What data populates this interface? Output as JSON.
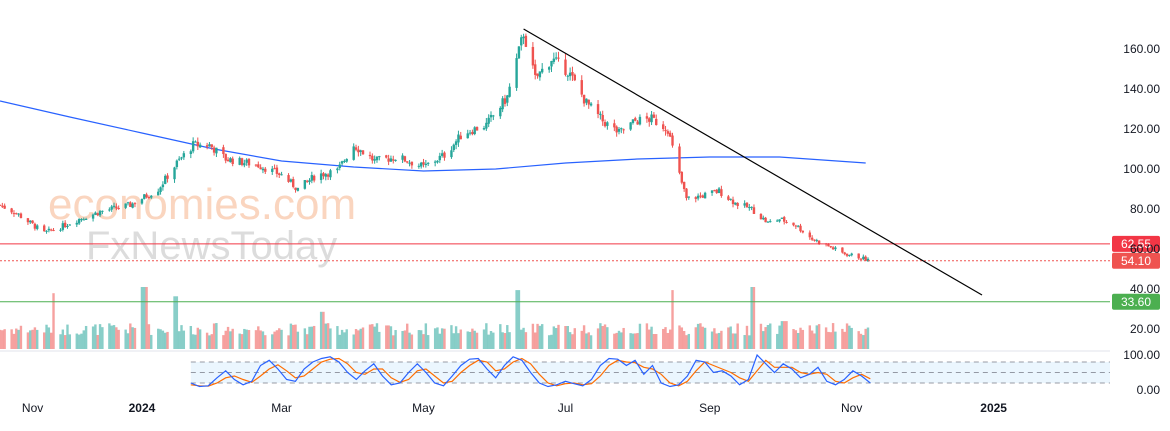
{
  "colors": {
    "up": "#26a69a",
    "down": "#ef5350",
    "ma": "#2962ff",
    "trendline": "#000000",
    "resistance": "#f23645",
    "last_price": "#ef5350",
    "support": "#4caf50",
    "stoch_k": "#2962ff",
    "stoch_d": "#ff6d00",
    "stoch_band": "#e3f2fd"
  },
  "watermark": {
    "line1": "economies.com",
    "line2": "FxNewsToday"
  },
  "chart_data": [
    {
      "type": "candlestick",
      "title": "",
      "x_ticks": [
        "Nov",
        "2024",
        "Mar",
        "May",
        "Jul",
        "Sep",
        "Nov",
        "2025"
      ],
      "y_ticks": [
        20,
        40,
        60,
        80,
        100,
        120,
        140,
        160
      ],
      "ylim": [
        10,
        175
      ],
      "xlim": [
        "2023-11-01",
        "2025-02-20"
      ],
      "grid": false,
      "price_path": [
        [
          "2023-11-01",
          82
        ],
        [
          "2023-11-08",
          78
        ],
        [
          "2023-11-14",
          73
        ],
        [
          "2023-11-20",
          68
        ],
        [
          "2023-11-25",
          70
        ],
        [
          "2023-12-05",
          75
        ],
        [
          "2023-12-15",
          79
        ],
        [
          "2023-12-27",
          82
        ],
        [
          "2024-01-08",
          90
        ],
        [
          "2024-01-16",
          103
        ],
        [
          "2024-01-23",
          112
        ],
        [
          "2024-01-30",
          112
        ],
        [
          "2024-02-06",
          105
        ],
        [
          "2024-02-20",
          102
        ],
        [
          "2024-03-01",
          97
        ],
        [
          "2024-03-08",
          90
        ],
        [
          "2024-03-16",
          97
        ],
        [
          "2024-03-25",
          99
        ],
        [
          "2024-04-01",
          112
        ],
        [
          "2024-04-10",
          104
        ],
        [
          "2024-04-20",
          106
        ],
        [
          "2024-05-01",
          101
        ],
        [
          "2024-05-10",
          107
        ],
        [
          "2024-05-18",
          118
        ],
        [
          "2024-05-28",
          122
        ],
        [
          "2024-06-06",
          136
        ],
        [
          "2024-06-13",
          168
        ],
        [
          "2024-06-18",
          145
        ],
        [
          "2024-06-25",
          155
        ],
        [
          "2024-07-02",
          149
        ],
        [
          "2024-07-10",
          133
        ],
        [
          "2024-07-17",
          124
        ],
        [
          "2024-07-24",
          118
        ],
        [
          "2024-07-31",
          124
        ],
        [
          "2024-08-07",
          125
        ],
        [
          "2024-08-14",
          120
        ],
        [
          "2024-08-18",
          101
        ],
        [
          "2024-08-22",
          85
        ],
        [
          "2024-08-30",
          87
        ],
        [
          "2024-09-05",
          89
        ],
        [
          "2024-09-12",
          83
        ],
        [
          "2024-09-19",
          80
        ],
        [
          "2024-09-26",
          73
        ],
        [
          "2024-10-01",
          75
        ],
        [
          "2024-10-08",
          72
        ],
        [
          "2024-10-15",
          65
        ],
        [
          "2024-10-21",
          62
        ],
        [
          "2024-10-28",
          58
        ],
        [
          "2024-11-04",
          56
        ],
        [
          "2024-11-09",
          54
        ]
      ],
      "series": [
        {
          "name": "",
          "kind": "moving-average",
          "points": [
            [
              "2023-11-01",
              134
            ],
            [
              "2023-12-01",
              126
            ],
            [
              "2024-01-01",
              118
            ],
            [
              "2024-02-01",
              110
            ],
            [
              "2024-03-01",
              104
            ],
            [
              "2024-04-01",
              101
            ],
            [
              "2024-05-01",
              99
            ],
            [
              "2024-06-01",
              100
            ],
            [
              "2024-07-01",
              103
            ],
            [
              "2024-08-01",
              105
            ],
            [
              "2024-09-01",
              106
            ],
            [
              "2024-10-01",
              106
            ],
            [
              "2024-11-07",
              103
            ]
          ]
        }
      ],
      "trendline": [
        [
          "2024-06-13",
          170
        ],
        [
          "2024-12-27",
          37
        ]
      ],
      "levels": [
        {
          "label": "62.55",
          "value": 62.55,
          "style": "solid",
          "color_key": "resistance"
        },
        {
          "label": "54.10",
          "value": 54.1,
          "style": "dotted",
          "color_key": "last_price"
        },
        {
          "label": "33.60",
          "value": 33.6,
          "style": "solid",
          "color_key": "support"
        }
      ],
      "volume_spikes": [
        [
          "2023-11-25",
          0.9
        ],
        [
          "2024-01-02",
          1.0
        ],
        [
          "2024-01-15",
          0.85
        ],
        [
          "2024-03-18",
          0.6
        ],
        [
          "2024-06-10",
          0.95
        ],
        [
          "2024-08-17",
          0.95
        ],
        [
          "2024-09-20",
          1.0
        ],
        [
          "2024-10-03",
          0.45
        ]
      ]
    },
    {
      "type": "line",
      "title": "",
      "y_ticks": [
        "100.00",
        "0.00"
      ],
      "ylim": [
        0,
        100
      ],
      "band": [
        20,
        80
      ],
      "grid": false,
      "series": [
        {
          "name": "",
          "color_key": "stoch_k"
        },
        {
          "name": "",
          "color_key": "stoch_d"
        }
      ],
      "stoch_start": "2024-01-22",
      "stoch_end": "2024-11-09",
      "stoch_values": [
        [
          20,
          15
        ],
        [
          10,
          12
        ],
        [
          12,
          11
        ],
        [
          35,
          20
        ],
        [
          55,
          35
        ],
        [
          30,
          40
        ],
        [
          15,
          30
        ],
        [
          25,
          22
        ],
        [
          70,
          40
        ],
        [
          85,
          60
        ],
        [
          60,
          72
        ],
        [
          30,
          55
        ],
        [
          25,
          35
        ],
        [
          60,
          40
        ],
        [
          80,
          60
        ],
        [
          90,
          80
        ],
        [
          95,
          88
        ],
        [
          80,
          90
        ],
        [
          50,
          75
        ],
        [
          30,
          50
        ],
        [
          55,
          45
        ],
        [
          75,
          60
        ],
        [
          40,
          60
        ],
        [
          15,
          35
        ],
        [
          20,
          22
        ],
        [
          50,
          30
        ],
        [
          75,
          55
        ],
        [
          50,
          60
        ],
        [
          20,
          40
        ],
        [
          12,
          20
        ],
        [
          40,
          25
        ],
        [
          70,
          50
        ],
        [
          88,
          70
        ],
        [
          90,
          85
        ],
        [
          60,
          80
        ],
        [
          35,
          55
        ],
        [
          70,
          60
        ],
        [
          95,
          80
        ],
        [
          85,
          90
        ],
        [
          50,
          75
        ],
        [
          20,
          45
        ],
        [
          10,
          20
        ],
        [
          15,
          12
        ],
        [
          25,
          18
        ],
        [
          18,
          20
        ],
        [
          12,
          15
        ],
        [
          30,
          18
        ],
        [
          70,
          40
        ],
        [
          90,
          70
        ],
        [
          88,
          85
        ],
        [
          70,
          80
        ],
        [
          85,
          78
        ],
        [
          45,
          65
        ],
        [
          70,
          60
        ],
        [
          20,
          45
        ],
        [
          10,
          20
        ],
        [
          15,
          12
        ],
        [
          40,
          25
        ],
        [
          85,
          55
        ],
        [
          80,
          80
        ],
        [
          50,
          70
        ],
        [
          55,
          60
        ],
        [
          40,
          50
        ],
        [
          15,
          35
        ],
        [
          30,
          25
        ],
        [
          100,
          55
        ],
        [
          75,
          85
        ],
        [
          50,
          65
        ],
        [
          75,
          65
        ],
        [
          60,
          65
        ],
        [
          35,
          50
        ],
        [
          45,
          45
        ],
        [
          65,
          50
        ],
        [
          25,
          45
        ],
        [
          15,
          25
        ],
        [
          30,
          20
        ],
        [
          55,
          35
        ],
        [
          40,
          45
        ],
        [
          20,
          32
        ]
      ]
    }
  ]
}
